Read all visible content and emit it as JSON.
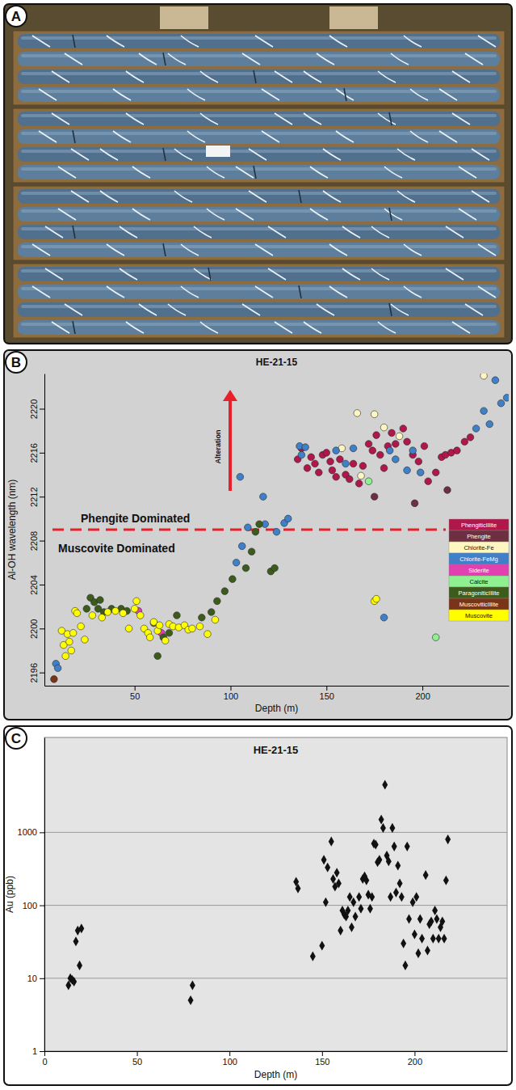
{
  "photo": {
    "panel": "A"
  },
  "chart_data": [
    {
      "panel": "B",
      "type": "scatter",
      "title": "HE-21-15",
      "x_label": "Depth (m)",
      "y_label": "Al-OH wavelength (nm)",
      "xlim": [
        3,
        245
      ],
      "xticks": [
        50,
        100,
        150,
        200
      ],
      "ylim": [
        2194.8,
        2223.2
      ],
      "yticks": [
        2196,
        2200,
        2204,
        2208,
        2212,
        2216,
        2220
      ],
      "grid": false,
      "marker": "circle",
      "legend": "lower right",
      "hline": 2209,
      "annotations": [
        "Phengite Dominated",
        "Muscovite Dominated",
        "Alteration"
      ],
      "series": [
        {
          "name": "PhengiticIllite",
          "color": "#b0174a",
          "x": [
            135,
            137,
            140,
            142,
            144,
            146,
            148,
            150,
            152,
            153,
            155,
            157,
            160,
            162,
            164,
            167,
            169,
            172,
            174,
            176,
            178,
            180,
            182,
            184,
            186,
            190,
            192,
            195,
            198,
            201,
            203,
            207,
            210,
            212,
            215,
            218,
            222,
            225
          ],
          "values": [
            2215.4,
            2216.4,
            2214.6,
            2215.6,
            2215,
            2214.2,
            2215.8,
            2216,
            2215.2,
            2214.4,
            2213.8,
            2215.4,
            2214,
            2213.6,
            2215,
            2213.2,
            2214.8,
            2216.8,
            2216.2,
            2217.6,
            2215.8,
            2214.6,
            2216.6,
            2217.8,
            2216.8,
            2218.2,
            2217,
            2215.8,
            2215.2,
            2216.6,
            2213.4,
            2214.2,
            2215.6,
            2215.8,
            2216,
            2216.2,
            2217,
            2217.4
          ]
        },
        {
          "name": "Phengite",
          "color": "#6e3040",
          "x": [
            175,
            196,
            213
          ],
          "values": [
            2212,
            2211.4,
            2212.6
          ]
        },
        {
          "name": "Chlorite-Fe",
          "color": "#fff5c0",
          "x": [
            158,
            166,
            168,
            175,
            180,
            188,
            232
          ],
          "values": [
            2216.4,
            2219.6,
            2213.9,
            2219.5,
            2218.3,
            2217.5,
            2223
          ]
        },
        {
          "name": "Chlorite-FeMg",
          "color": "#3f80c8",
          "x": [
            9,
            10,
            103,
            105,
            106,
            109,
            117,
            118,
            124,
            128,
            130,
            136,
            137,
            139,
            155,
            160,
            164,
            180,
            183,
            186,
            192,
            195,
            199,
            228,
            232,
            235,
            238,
            241,
            244
          ],
          "values": [
            2196.8,
            2196.4,
            2206,
            2213.8,
            2207.5,
            2209.2,
            2212,
            2209.5,
            2208.8,
            2209.6,
            2210,
            2216.6,
            2215.8,
            2216.5,
            2216.2,
            2215,
            2216.4,
            2201,
            2216.2,
            2215.4,
            2214.4,
            2216.2,
            2214.2,
            2218.2,
            2219.8,
            2218.6,
            2222.6,
            2220.5,
            2221
          ]
        },
        {
          "name": "Siderite",
          "color": "#e23fb0",
          "x": [
            52,
            64
          ],
          "values": [
            2201.6,
            2199.6
          ]
        },
        {
          "name": "Calcite",
          "color": "#8ef08e",
          "x": [
            172,
            207
          ],
          "values": [
            2213.4,
            2199.2
          ]
        },
        {
          "name": "ParagoniticIllite",
          "color": "#3c5c1c",
          "x": [
            25,
            27,
            29,
            31,
            32,
            34,
            38,
            43,
            46,
            60,
            62,
            65,
            68,
            72,
            85,
            90,
            93,
            97,
            101,
            108,
            111,
            113,
            115,
            121,
            123
          ],
          "values": [
            2201.8,
            2202.8,
            2202.4,
            2201.8,
            2202.6,
            2201.5,
            2201.8,
            2201.8,
            2201.6,
            2200.5,
            2197.5,
            2199.2,
            2199.6,
            2201.2,
            2201,
            2201.5,
            2202.5,
            2203.4,
            2204.5,
            2205.5,
            2207,
            2208.8,
            2209.5,
            2205.2,
            2205.5
          ]
        },
        {
          "name": "MuscoviticIllite",
          "color": "#7a3418",
          "x": [
            8
          ],
          "values": [
            2195.4
          ]
        },
        {
          "name": "Muscovite",
          "color": "#ffff00",
          "x": [
            12,
            13,
            14,
            15,
            16,
            17,
            18,
            19,
            20,
            22,
            24,
            28,
            33,
            36,
            40,
            44,
            47,
            50,
            51,
            53,
            55,
            57,
            58,
            60,
            62,
            63,
            66,
            68,
            70,
            73,
            76,
            78,
            80,
            84,
            88,
            92,
            175,
            176
          ],
          "values": [
            2199.8,
            2198.5,
            2197.5,
            2199.5,
            2198.8,
            2198,
            2199.6,
            2201.6,
            2201.4,
            2200.2,
            2199,
            2201.2,
            2201,
            2201.5,
            2201.6,
            2201.4,
            2200,
            2201.8,
            2202.5,
            2201.2,
            2200,
            2199.6,
            2199.2,
            2200.6,
            2199.8,
            2200.3,
            2198.9,
            2200.4,
            2200.2,
            2200.1,
            2200.3,
            2199.9,
            2200,
            2200.2,
            2199.5,
            2200.8,
            2202.5,
            2202.7
          ]
        }
      ]
    },
    {
      "panel": "C",
      "type": "scatter",
      "title": "HE-21-15",
      "x_label": "Depth (m)",
      "y_label": "Au (ppb)",
      "xlim": [
        0,
        250
      ],
      "xticks": [
        0,
        50,
        100,
        150,
        200
      ],
      "ylim": [
        1,
        20000
      ],
      "yticks": [
        1,
        10,
        100,
        1000
      ],
      "log": "y",
      "grid": true,
      "marker": "diamond",
      "color": "#111111",
      "x": [
        13,
        14,
        15,
        16,
        17,
        18,
        19,
        20,
        79,
        80,
        136,
        137,
        145,
        150,
        151,
        152,
        153,
        155,
        156,
        157,
        158,
        159,
        160,
        161,
        162,
        163,
        164,
        165,
        166,
        167,
        168,
        170,
        171,
        172,
        173,
        174,
        175,
        176,
        177,
        178,
        179,
        180,
        181,
        182,
        183,
        184,
        185,
        186,
        187,
        188,
        189,
        190,
        191,
        192,
        193,
        194,
        195,
        196,
        197,
        199,
        200,
        201,
        202,
        203,
        204,
        206,
        207,
        208,
        209,
        210,
        211,
        212,
        213,
        214,
        215,
        216,
        217,
        218
      ],
      "values": [
        8,
        10,
        9.5,
        9,
        32,
        45,
        15,
        48,
        5,
        8,
        210,
        170,
        20,
        28,
        420,
        110,
        330,
        750,
        230,
        180,
        280,
        200,
        45,
        85,
        75,
        70,
        85,
        130,
        50,
        110,
        70,
        130,
        90,
        230,
        250,
        220,
        140,
        90,
        130,
        700,
        680,
        390,
        420,
        1500,
        1150,
        4500,
        480,
        400,
        130,
        1150,
        640,
        150,
        350,
        200,
        130,
        30,
        15,
        640,
        65,
        110,
        40,
        130,
        22,
        65,
        35,
        260,
        24,
        55,
        60,
        35,
        85,
        65,
        35,
        50,
        60,
        35,
        220,
        800
      ]
    }
  ]
}
